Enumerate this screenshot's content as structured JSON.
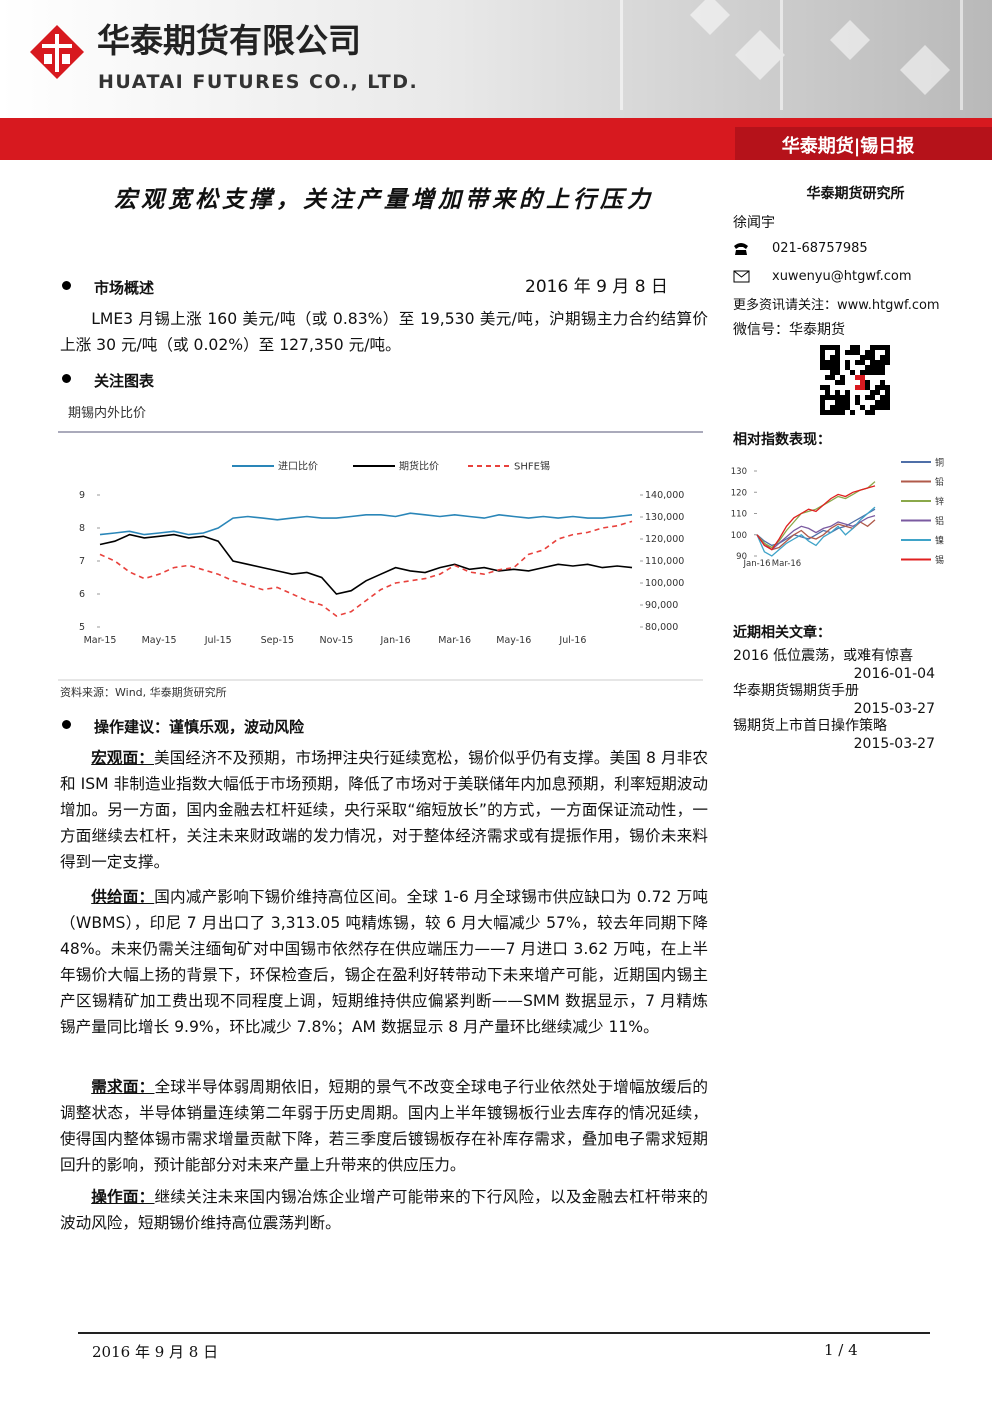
{
  "header": {
    "company_cn": "华泰期货有限公司",
    "company_en": "HUATAI FUTURES CO., LTD.",
    "report_tag": "华泰期货|锡日报"
  },
  "title": "宏观宽松支撑，关注产量增加带来的上行压力",
  "sidebar": {
    "institute": "华泰期货研究所",
    "analyst": "徐闻宇",
    "phone": "021-68757985",
    "email": "xuwenyu@htgwf.com",
    "more_info": "更多资讯请关注：www.htgwf.com",
    "wechat": "微信号：华泰期货",
    "index_title": "相对指数表现：",
    "articles_title": "近期相关文章：",
    "articles": [
      {
        "title": "2016 低位震荡，或难有惊喜",
        "date": "2016-01-04"
      },
      {
        "title": "华泰期货锡期货手册",
        "date": "2015-03-27"
      },
      {
        "title": "锡期货上市首日操作策略",
        "date": "2015-03-27"
      }
    ]
  },
  "overview": {
    "heading": "市场概述",
    "date": "2016 年 9 月 8 日",
    "text": "LME3 月锡上涨 160 美元/吨（或 0.83%）至 19,530 美元/吨，沪期锡主力合约结算价上涨 30 元/吨（或 0.02%）至 127,350 元/吨。"
  },
  "chart_section": {
    "heading": "关注图表",
    "caption": "期锡内外比价",
    "source": "资料来源：Wind, 华泰期货研究所"
  },
  "advice": {
    "heading": "操作建议：谨慎乐观，波动风险",
    "paragraphs": [
      {
        "label": "宏观面：",
        "text": "美国经济不及预期，市场押注央行延续宽松，锡价似乎仍有支撑。美国 8 月非农和 ISM 非制造业指数大幅低于市场预期，降低了市场对于美联储年内加息预期，利率短期波动增加。另一方面，国内金融去杠杆延续，央行采取“缩短放长”的方式，一方面保证流动性，一方面继续去杠杆，关注未来财政端的发力情况，对于整体经济需求或有提振作用，锡价未来料得到一定支撑。"
      },
      {
        "label": "供给面：",
        "text": "国内减产影响下锡价维持高位区间。全球 1-6 月全球锡市供应缺口为 0.72 万吨（WBMS），印尼 7 月出口了 3,313.05 吨精炼锡，较 6 月大幅减少 57%，较去年同期下降 48%。未来仍需关注缅甸矿对中国锡市依然存在供应端压力——7 月进口 3.62 万吨，在上半年锡价大幅上扬的背景下，环保检查后，锡企在盈利好转带动下未来增产可能，近期国内锡主产区锡精矿加工费出现不同程度上调，短期维持供应偏紧判断——SMM 数据显示，7 月精炼锡产量同比增长 9.9%，环比减少 7.8%；AM 数据显示 8 月产量环比继续减少 11%。"
      },
      {
        "label": "需求面：",
        "text": "全球半导体弱周期依旧，短期的景气不改变全球电子行业依然处于增幅放缓后的调整状态，半导体销量连续第二年弱于历史周期。国内上半年镀锡板行业去库存的情况延续，使得国内整体锡市需求增量贡献下降，若三季度后镀锡板存在补库存需求，叠加电子需求短期回升的影响，预计能部分对未来产量上升带来的供应压力。"
      },
      {
        "label": "操作面：",
        "text": "继续关注未来国内锡冶炼企业增产可能带来的下行风险，以及金融去杠杆带来的波动风险，短期锡价维持高位震荡判断。"
      }
    ]
  },
  "footer": {
    "date": "2016 年 9 月 8 日",
    "page": "1 / 4"
  },
  "chart_data": [
    {
      "type": "line",
      "categories": [
        "Mar-15",
        null,
        null,
        null,
        "May-15",
        null,
        null,
        null,
        "Jul-15",
        null,
        null,
        null,
        "Sep-15",
        null,
        null,
        null,
        "Nov-15",
        null,
        null,
        null,
        "Jan-16",
        null,
        null,
        null,
        "Mar-16",
        null,
        null,
        null,
        "May-16",
        null,
        null,
        null,
        "Jul-16",
        null,
        null,
        null,
        null
      ],
      "ylim": [
        5,
        9
      ],
      "yticks": [
        5,
        6,
        7,
        8,
        9
      ],
      "y2lim": [
        80000,
        140000
      ],
      "y2ticks": [
        {
          "value": 80000,
          "label": "80,000"
        },
        {
          "value": 90000,
          "label": "90,000"
        },
        {
          "value": 100000,
          "label": "100,000"
        },
        {
          "value": 110000,
          "label": "110,000"
        },
        {
          "value": 120000,
          "label": "120,000"
        },
        {
          "value": 130000,
          "label": "130,000"
        },
        {
          "value": 140000,
          "label": "140,000"
        }
      ],
      "series": [
        {
          "name": "进口比价",
          "color": "#2a86b8",
          "values": [
            7.8,
            7.85,
            7.9,
            7.8,
            7.85,
            7.9,
            7.8,
            7.85,
            8.0,
            8.3,
            8.35,
            8.3,
            8.25,
            8.3,
            8.35,
            8.3,
            8.3,
            8.35,
            8.4,
            8.4,
            8.35,
            8.45,
            8.4,
            8.35,
            8.4,
            8.35,
            8.3,
            8.4,
            8.35,
            8.3,
            8.35,
            8.3,
            8.35,
            8.3,
            8.3,
            8.35,
            8.4
          ]
        },
        {
          "name": "期货比价",
          "color": "#000000",
          "values": [
            7.5,
            7.6,
            7.8,
            7.7,
            7.75,
            7.8,
            7.7,
            7.75,
            7.6,
            7.0,
            6.9,
            6.8,
            6.7,
            6.6,
            6.65,
            6.5,
            6.0,
            6.1,
            6.4,
            6.6,
            6.8,
            6.7,
            6.65,
            6.8,
            6.9,
            6.75,
            6.8,
            6.7,
            6.75,
            6.7,
            6.8,
            6.9,
            6.85,
            6.9,
            6.8,
            6.85,
            6.8
          ]
        },
        {
          "name": "SHFE锡",
          "color": "#e8413c",
          "axis": "y2",
          "dashed": true,
          "values": [
            113000,
            110000,
            105000,
            102000,
            104000,
            107000,
            108000,
            106000,
            104000,
            101000,
            99000,
            97000,
            98000,
            95000,
            92000,
            90000,
            85000,
            87000,
            92000,
            97000,
            100000,
            101000,
            102000,
            104000,
            108000,
            105000,
            104000,
            106000,
            107000,
            113000,
            115000,
            120000,
            122000,
            123000,
            125000,
            126000,
            128000
          ]
        }
      ]
    },
    {
      "type": "line",
      "categories": [
        "Jan-16",
        null,
        null,
        null,
        "Mar-16",
        null,
        null,
        null,
        null,
        null,
        null,
        null,
        null,
        null,
        null,
        null,
        null
      ],
      "ylim": [
        90,
        130
      ],
      "yticks": [
        90,
        100,
        110,
        120,
        130
      ],
      "series": [
        {
          "name": "铜",
          "color": "#4f6fa8",
          "values": [
            100,
            97,
            95,
            96,
            98,
            100,
            99,
            98,
            100,
            102,
            101,
            103,
            104,
            106,
            108,
            110,
            112
          ]
        },
        {
          "name": "铅",
          "color": "#b05a4a",
          "values": [
            100,
            96,
            93,
            94,
            97,
            100,
            102,
            99,
            98,
            100,
            103,
            105,
            104,
            103,
            106,
            104,
            107
          ]
        },
        {
          "name": "锌",
          "color": "#8aa84a",
          "values": [
            100,
            96,
            94,
            97,
            102,
            106,
            110,
            111,
            112,
            114,
            116,
            118,
            117,
            119,
            121,
            122,
            125
          ]
        },
        {
          "name": "铝",
          "color": "#7a5aa0",
          "values": [
            100,
            95,
            93,
            96,
            99,
            102,
            104,
            103,
            101,
            103,
            104,
            106,
            105,
            104,
            106,
            108,
            109
          ]
        },
        {
          "name": "镍",
          "color": "#3fa3c8",
          "values": [
            100,
            92,
            90,
            93,
            96,
            98,
            100,
            97,
            95,
            99,
            101,
            104,
            100,
            103,
            107,
            110,
            113
          ]
        },
        {
          "name": "锡",
          "color": "#e02020",
          "values": [
            100,
            95,
            93,
            98,
            104,
            108,
            110,
            112,
            111,
            114,
            117,
            119,
            118,
            120,
            121,
            122,
            123
          ]
        }
      ]
    }
  ]
}
